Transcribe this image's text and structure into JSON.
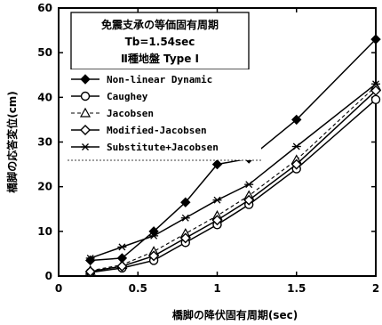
{
  "chart_data": {
    "type": "line",
    "title_lines": [
      "免震支承の等価固有周期",
      "Tb=1.54sec",
      "Ⅱ種地盤 Type Ⅰ"
    ],
    "xlabel": "橋脚の降伏固有周期(sec)",
    "ylabel": "橋脚の応答変位(cm)",
    "xlim": [
      0,
      2
    ],
    "ylim": [
      0,
      60
    ],
    "x_ticks": [
      0,
      0.5,
      1,
      1.5,
      2
    ],
    "x_tick_labels": [
      "0",
      "0.5",
      "1",
      "1.5",
      "2"
    ],
    "y_ticks": [
      0,
      10,
      20,
      30,
      40,
      50,
      60
    ],
    "y_tick_labels": [
      "0",
      "10",
      "20",
      "30",
      "40",
      "50",
      "60"
    ],
    "grid": false,
    "legend_position": "top-left",
    "x": [
      0.2,
      0.4,
      0.6,
      0.8,
      1.0,
      1.2,
      1.5,
      2.0
    ],
    "series": [
      {
        "name": "Non-linear Dynamic",
        "marker": "filled-diamond",
        "line": "solid",
        "values": [
          3.5,
          4.0,
          10.0,
          16.5,
          25.0,
          26.3,
          35.0,
          53.0
        ]
      },
      {
        "name": "Caughey",
        "marker": "open-circle",
        "line": "solid",
        "values": [
          0.8,
          1.8,
          3.5,
          7.5,
          11.5,
          16.0,
          24.0,
          39.5
        ]
      },
      {
        "name": "Jacobsen",
        "marker": "open-triangle",
        "line": "dashed",
        "values": [
          1.2,
          2.5,
          5.5,
          9.5,
          13.5,
          18.0,
          26.0,
          42.5
        ]
      },
      {
        "name": "Modified-Jacobsen",
        "marker": "open-diamond",
        "line": "solid",
        "values": [
          1.0,
          2.2,
          4.5,
          8.5,
          12.5,
          17.0,
          25.0,
          41.5
        ]
      },
      {
        "name": "Substitute+Jacobsen",
        "marker": "asterisk",
        "line": "solid",
        "values": [
          4.0,
          6.5,
          9.0,
          13.0,
          17.0,
          20.5,
          29.0,
          43.0
        ]
      }
    ]
  }
}
